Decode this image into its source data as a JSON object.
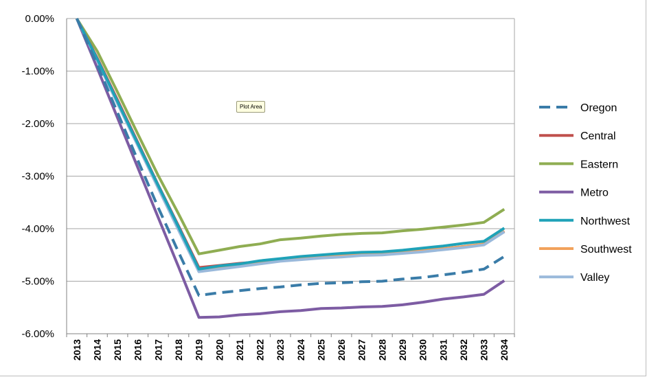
{
  "chart_data": {
    "type": "line",
    "categories": [
      "2013",
      "2014",
      "2015",
      "2016",
      "2017",
      "2018",
      "2019",
      "2020",
      "2021",
      "2022",
      "2023",
      "2024",
      "2025",
      "2026",
      "2027",
      "2028",
      "2029",
      "2030",
      "2031",
      "2032",
      "2033",
      "2034"
    ],
    "ylim": [
      -6,
      0
    ],
    "yticks": [
      "0.00%",
      "-1.00%",
      "-2.00%",
      "-3.00%",
      "-4.00%",
      "-5.00%",
      "-6.00%"
    ],
    "grid": true,
    "legend_position": "right",
    "tooltip": "Plot Area",
    "series": [
      {
        "name": "Oregon",
        "color": "#3a7ca8",
        "dash": true,
        "values": [
          0,
          -0.88,
          -1.79,
          -2.7,
          -3.6,
          -4.45,
          -5.27,
          -5.22,
          -5.18,
          -5.14,
          -5.11,
          -5.07,
          -5.04,
          -5.03,
          -5.01,
          -5.0,
          -4.96,
          -4.93,
          -4.88,
          -4.83,
          -4.77,
          -4.53
        ]
      },
      {
        "name": "Central",
        "color": "#c0504d",
        "dash": false,
        "values": [
          0,
          -0.75,
          -1.55,
          -2.36,
          -3.17,
          -3.95,
          -4.74,
          -4.7,
          -4.66,
          -4.63,
          -4.58,
          -4.56,
          -4.53,
          -4.51,
          -4.49,
          -4.48,
          -4.45,
          -4.42,
          -4.38,
          -4.34,
          -4.3,
          -4.05
        ]
      },
      {
        "name": "Eastern",
        "color": "#8fad52",
        "dash": false,
        "values": [
          0,
          -0.62,
          -1.4,
          -2.2,
          -2.99,
          -3.72,
          -4.48,
          -4.41,
          -4.34,
          -4.29,
          -4.21,
          -4.18,
          -4.14,
          -4.11,
          -4.09,
          -4.08,
          -4.04,
          -4.01,
          -3.97,
          -3.93,
          -3.88,
          -3.63
        ]
      },
      {
        "name": "Metro",
        "color": "#7d5ca3",
        "dash": false,
        "values": [
          0,
          -0.94,
          -1.89,
          -2.84,
          -3.79,
          -4.73,
          -5.69,
          -5.68,
          -5.64,
          -5.62,
          -5.58,
          -5.56,
          -5.52,
          -5.51,
          -5.49,
          -5.48,
          -5.45,
          -5.4,
          -5.34,
          -5.3,
          -5.25,
          -4.99
        ]
      },
      {
        "name": "Northwest",
        "color": "#1fa2b8",
        "dash": false,
        "values": [
          0,
          -0.77,
          -1.58,
          -2.38,
          -3.18,
          -3.97,
          -4.77,
          -4.71,
          -4.67,
          -4.61,
          -4.57,
          -4.53,
          -4.5,
          -4.47,
          -4.45,
          -4.44,
          -4.41,
          -4.37,
          -4.33,
          -4.28,
          -4.24,
          -3.99
        ]
      },
      {
        "name": "Southwest",
        "color": "#f2a25c",
        "dash": false,
        "values": [
          0,
          -0.78,
          -1.59,
          -2.4,
          -3.21,
          -4.01,
          -4.79,
          -4.74,
          -4.69,
          -4.64,
          -4.6,
          -4.57,
          -4.54,
          -4.51,
          -4.49,
          -4.48,
          -4.45,
          -4.42,
          -4.38,
          -4.34,
          -4.29,
          -4.04
        ]
      },
      {
        "name": "Valley",
        "color": "#9ab9db",
        "dash": false,
        "values": [
          0,
          -0.8,
          -1.62,
          -2.42,
          -3.23,
          -4.03,
          -4.82,
          -4.77,
          -4.72,
          -4.67,
          -4.62,
          -4.59,
          -4.56,
          -4.54,
          -4.51,
          -4.5,
          -4.47,
          -4.44,
          -4.4,
          -4.36,
          -4.31,
          -4.06
        ]
      }
    ]
  }
}
